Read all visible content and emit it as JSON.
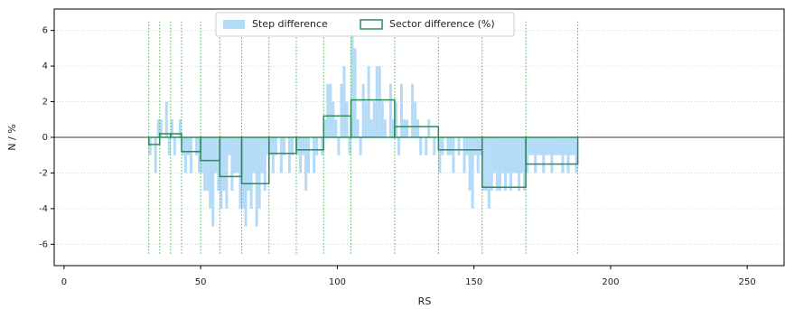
{
  "chart_data": {
    "type": "bar",
    "xlabel": "RS",
    "ylabel": "N / %",
    "xlim": [
      -3.6,
      263.5
    ],
    "ylim": [
      -7.2,
      7.2
    ],
    "xticks": [
      0,
      50,
      100,
      150,
      200,
      250
    ],
    "yticks": [
      -6,
      -4,
      -2,
      0,
      2,
      4,
      6
    ],
    "grid": true,
    "legend": "upper center",
    "steps": {
      "name": "Step difference",
      "color": "#b3dbf7",
      "x": [
        31,
        32,
        33,
        34,
        35,
        36,
        37,
        38,
        39,
        40,
        41,
        42,
        43,
        44,
        45,
        46,
        47,
        48,
        49,
        50,
        51,
        52,
        53,
        54,
        55,
        56,
        57,
        58,
        59,
        60,
        61,
        62,
        63,
        64,
        65,
        66,
        67,
        68,
        69,
        70,
        71,
        72,
        73,
        74,
        75,
        76,
        77,
        78,
        79,
        80,
        81,
        82,
        83,
        84,
        85,
        86,
        87,
        88,
        89,
        90,
        91,
        92,
        93,
        94,
        95,
        96,
        97,
        98,
        99,
        100,
        101,
        102,
        103,
        104,
        105,
        106,
        107,
        108,
        109,
        110,
        111,
        112,
        113,
        114,
        115,
        116,
        117,
        118,
        119,
        120,
        121,
        122,
        123,
        124,
        125,
        126,
        127,
        128,
        129,
        130,
        131,
        132,
        133,
        134,
        135,
        136,
        137,
        138,
        139,
        140,
        141,
        142,
        143,
        144,
        145,
        146,
        147,
        148,
        149,
        150,
        151,
        152,
        153,
        154,
        155,
        156,
        157,
        158,
        159,
        160,
        161,
        162,
        163,
        164,
        165,
        166,
        167,
        168,
        169,
        170,
        171,
        172,
        173,
        174,
        175,
        176,
        177,
        178,
        179,
        180,
        181,
        182,
        183,
        184,
        185,
        186,
        187
      ],
      "values": [
        -1,
        0,
        -2,
        1,
        1,
        0,
        2,
        -1,
        1,
        -1,
        0,
        1,
        -1,
        -2,
        -1,
        -2,
        0,
        -1,
        -2,
        -2,
        -3,
        -3,
        -4,
        -5,
        -2,
        -3,
        -4,
        -3,
        -4,
        -1,
        -3,
        -2,
        -2,
        -4,
        -4,
        -5,
        -3,
        -4,
        -2,
        -5,
        -4,
        -2,
        -3,
        -1,
        -1,
        -2,
        -1,
        0,
        -2,
        -1,
        0,
        -2,
        -1,
        0,
        -1,
        -2,
        -1,
        -3,
        -2,
        0,
        -2,
        -1,
        0,
        -1,
        1,
        3,
        3,
        2,
        1,
        -1,
        3,
        4,
        2,
        -1,
        6,
        5,
        1,
        -1,
        3,
        2,
        4,
        1,
        2,
        4,
        4,
        2,
        1,
        0,
        3,
        1,
        2,
        -1,
        3,
        1,
        1,
        0,
        3,
        2,
        1,
        -1,
        0,
        -1,
        1,
        0,
        -1,
        0,
        -2,
        -1,
        0,
        -1,
        -1,
        -2,
        0,
        -1,
        0,
        -2,
        -1,
        -3,
        -4,
        -1,
        -2,
        -1,
        -3,
        -3,
        -4,
        -3,
        -2,
        -3,
        -3,
        -2,
        -3,
        -2,
        -3,
        -2,
        -2,
        -3,
        -2,
        -3,
        -2,
        -1,
        -1,
        -2,
        -1,
        -1,
        -2,
        -1,
        -1,
        -2,
        -1,
        -1,
        -1,
        -2,
        -1,
        -2,
        -1,
        -1,
        -2
      ]
    },
    "sectors": {
      "name": "Sector difference (%)",
      "color": "#2e8b57",
      "boundary_color": "#4caf50",
      "bins": [
        31,
        35,
        39,
        43,
        50,
        57,
        65,
        75,
        85,
        95,
        105,
        121,
        137,
        153,
        169,
        188
      ],
      "values": [
        -0.4,
        0.2,
        0.2,
        -0.8,
        -1.3,
        -2.2,
        -2.6,
        -0.9,
        -0.7,
        1.2,
        2.1,
        0.6,
        -0.7,
        -2.8,
        -1.5
      ]
    }
  }
}
